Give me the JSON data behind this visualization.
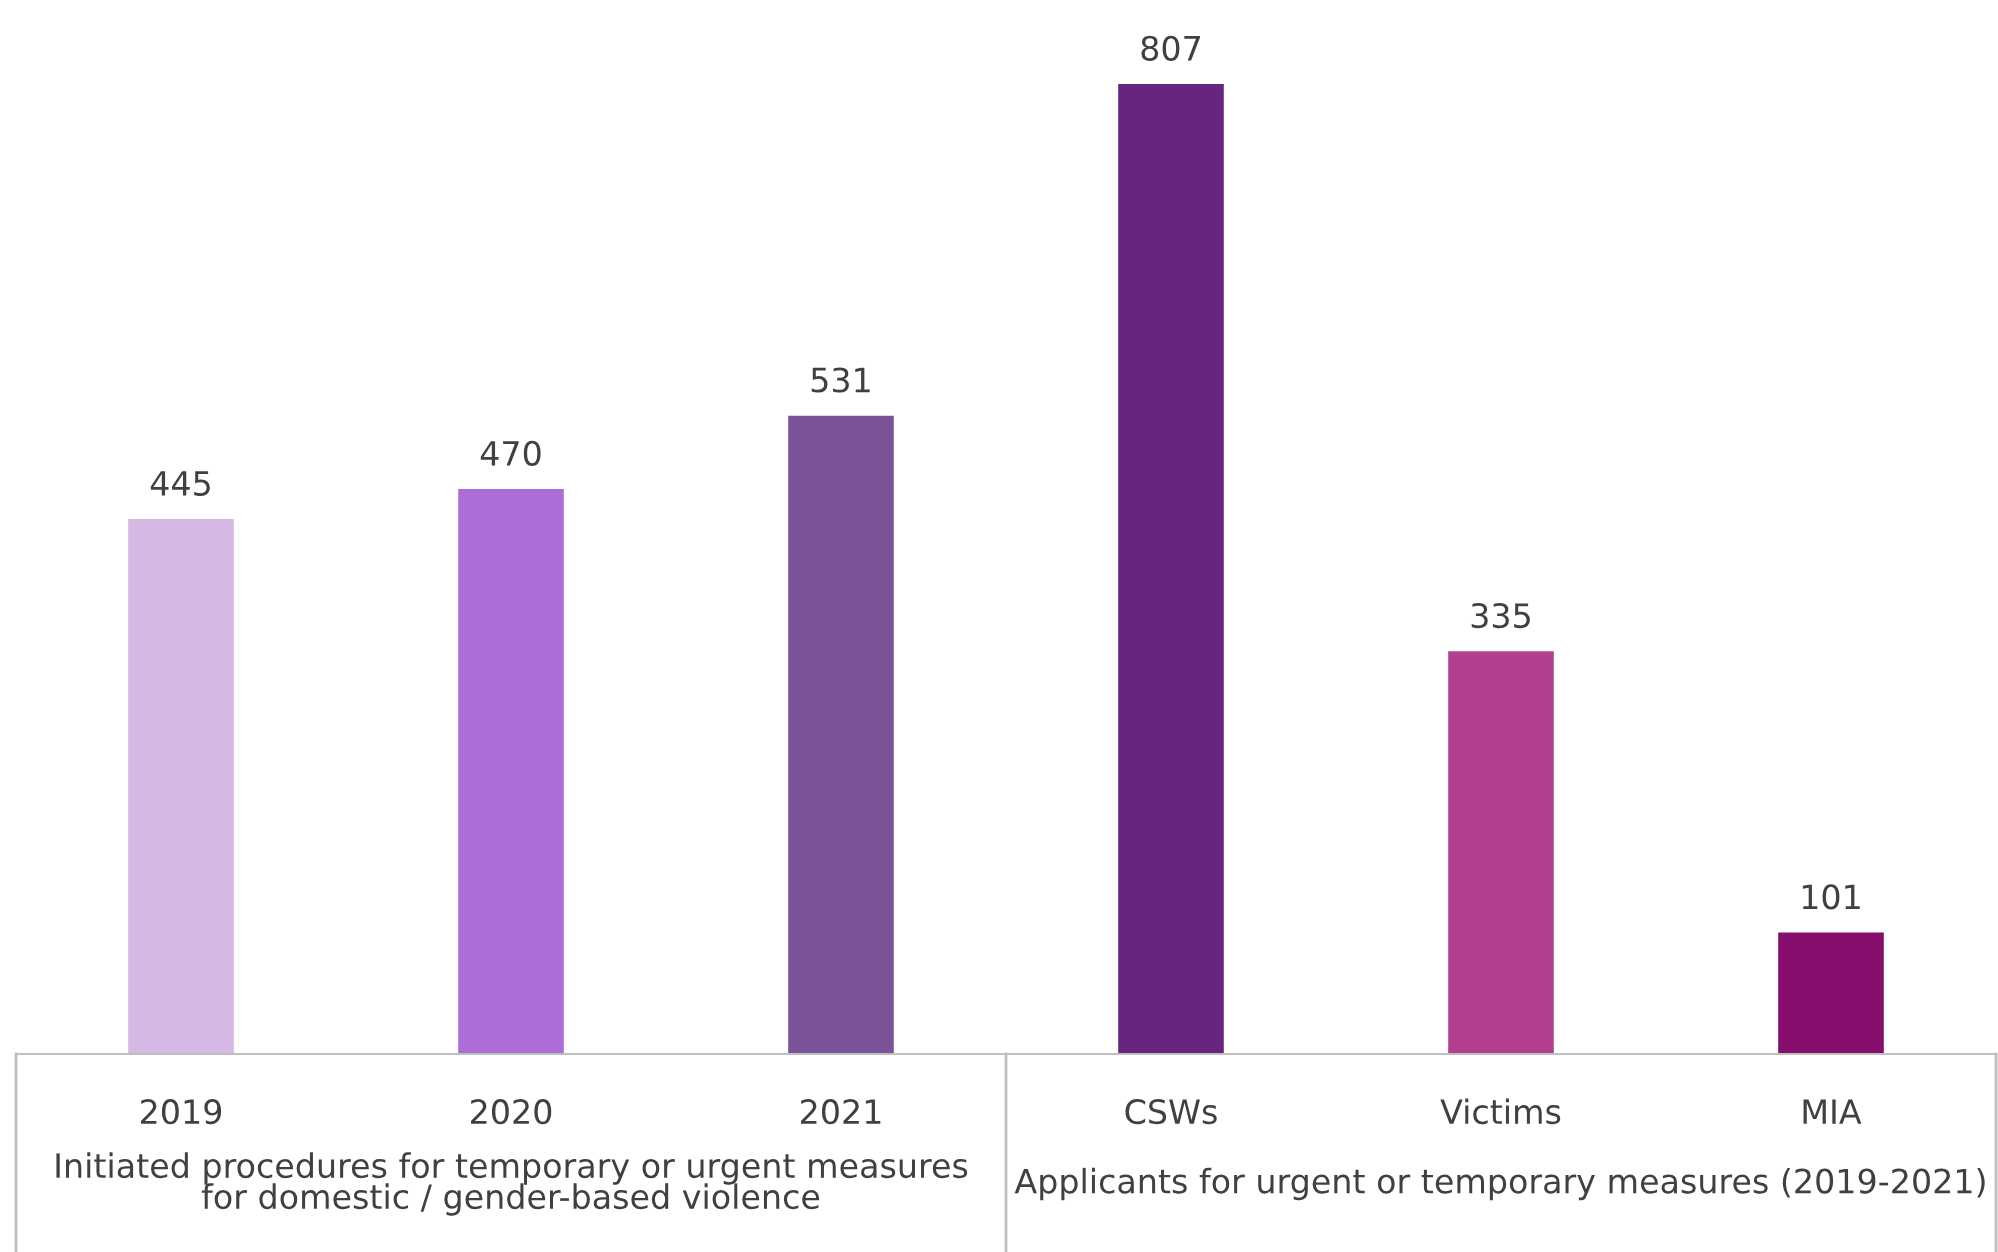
{
  "chart_data": {
    "type": "bar",
    "categories": [
      "2019",
      "2020",
      "2021",
      "CSWs",
      "Victims",
      "MIA"
    ],
    "values": [
      445,
      470,
      531,
      807,
      335,
      101
    ],
    "colors": [
      "#d5b8e3",
      "#ad6dd8",
      "#7b5398",
      "#662680",
      "#b23f8f",
      "#860d6b"
    ],
    "data_labels": true,
    "grid": false,
    "legend": false,
    "annotations": [
      "Initiated procedures for temporary or urgent measures\nfor domestic / gender-based violence",
      "Applicants for urgent or temporary measures (2019-2021)"
    ]
  }
}
